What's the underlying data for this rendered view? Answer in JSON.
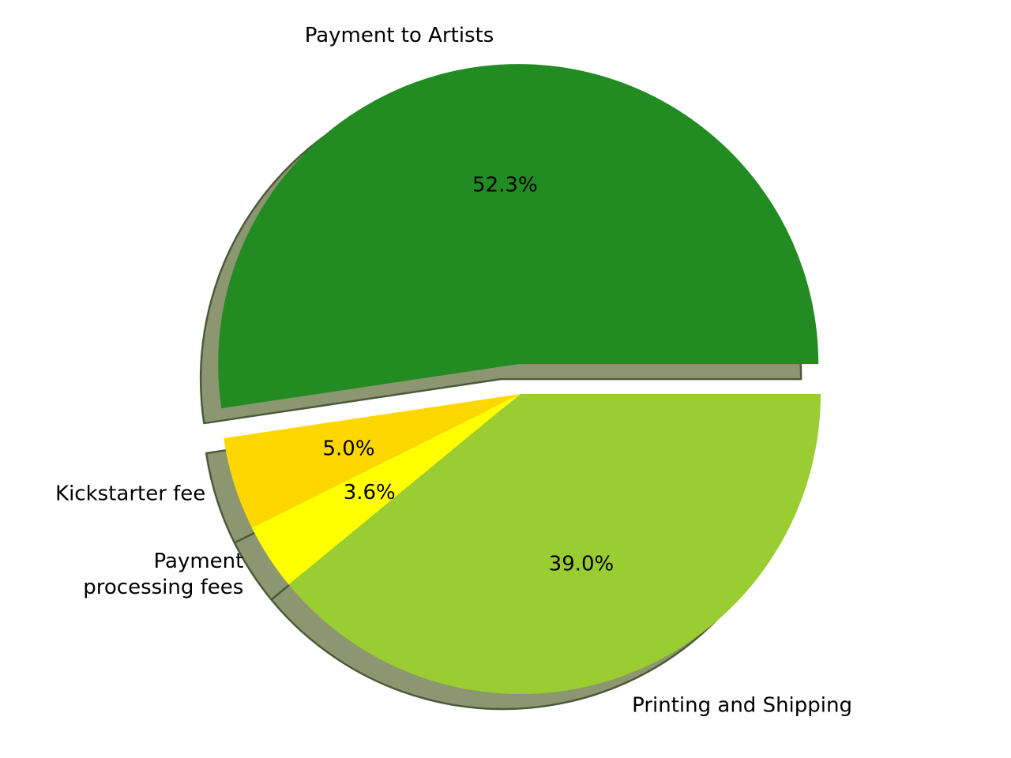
{
  "chart_data": {
    "type": "pie",
    "title": "",
    "slices": [
      {
        "label": "Payment to Artists",
        "value": 52.3,
        "pct_label": "52.3%",
        "color": "#228b22",
        "explode": true
      },
      {
        "label": "Kickstarter fee",
        "value": 5.0,
        "pct_label": "5.0%",
        "color": "#ffd700",
        "explode": false
      },
      {
        "label": "Payment\nprocessing fees",
        "value": 3.6,
        "pct_label": "3.6%",
        "color": "#ffff00",
        "explode": false
      },
      {
        "label": "Printing and Shipping",
        "value": 39.0,
        "pct_label": "39.0%",
        "color": "#9acd32",
        "explode": false
      }
    ],
    "start_angle_deg": 0,
    "direction": "counterclockwise",
    "shadow": true,
    "shadow_color": "#8c9670",
    "legend": "none"
  }
}
